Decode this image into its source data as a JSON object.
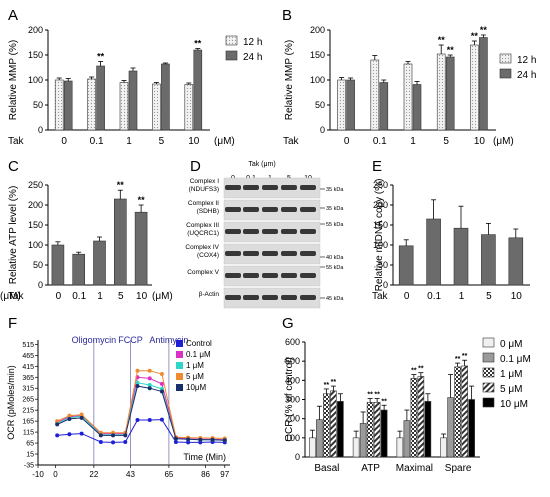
{
  "chart_data": [
    {
      "panel": "A",
      "type": "bar",
      "ylabel": "Relative MMP (%)",
      "xlabel_prefix": "Tak",
      "unit": "(μM)",
      "ylim": [
        0,
        200
      ],
      "yticks": [
        0,
        50,
        100,
        150,
        200
      ],
      "categories": [
        "0",
        "0.1",
        "1",
        "5",
        "10"
      ],
      "series": [
        {
          "name": "12 h",
          "values": [
            100,
            102,
            95,
            92,
            91
          ],
          "errors": [
            4,
            4,
            4,
            3,
            3
          ]
        },
        {
          "name": "24 h",
          "values": [
            98,
            128,
            118,
            132,
            160
          ],
          "errors": [
            5,
            9,
            6,
            2,
            3
          ]
        }
      ],
      "significance": [
        {
          "series": 1,
          "index": 1,
          "label": "**"
        },
        {
          "series": 1,
          "index": 4,
          "label": "**"
        }
      ]
    },
    {
      "panel": "B",
      "type": "bar",
      "ylabel": "Relative MMP (%)",
      "xlabel_prefix": "Tak",
      "unit": "(μM)",
      "ylim": [
        0,
        200
      ],
      "yticks": [
        0,
        50,
        100,
        150,
        200
      ],
      "categories": [
        "0",
        "0.1",
        "1",
        "5",
        "10"
      ],
      "series": [
        {
          "name": "12 h",
          "values": [
            100,
            140,
            132,
            152,
            170
          ],
          "errors": [
            5,
            9,
            5,
            18,
            8
          ]
        },
        {
          "name": "24 h",
          "values": [
            100,
            95,
            91,
            146,
            185
          ],
          "errors": [
            4,
            5,
            6,
            4,
            5
          ]
        }
      ],
      "significance": [
        {
          "series": 0,
          "index": 3,
          "label": "**"
        },
        {
          "series": 1,
          "index": 3,
          "label": "**"
        },
        {
          "series": 0,
          "index": 4,
          "label": "**"
        },
        {
          "series": 1,
          "index": 4,
          "label": "**"
        }
      ]
    },
    {
      "panel": "C",
      "type": "bar",
      "ylabel": "Relative ATP level (%)",
      "xlabel_prefix": "Tak",
      "unit": "(μM)",
      "ylim": [
        0,
        250
      ],
      "yticks": [
        0,
        50,
        100,
        150,
        200,
        250
      ],
      "categories": [
        "0",
        "0.1",
        "1",
        "5",
        "10"
      ],
      "values": [
        100,
        77,
        110,
        215,
        182
      ],
      "errors": [
        8,
        5,
        10,
        22,
        18
      ],
      "significance": [
        {
          "index": 3,
          "label": "**"
        },
        {
          "index": 4,
          "label": "**"
        }
      ]
    },
    {
      "panel": "D",
      "type": "western-blot",
      "header": "Tak (μm)",
      "lanes": [
        "0",
        "0.1",
        "1",
        "5",
        "10"
      ],
      "bands": [
        {
          "label": [
            "Complex I",
            "(NDUFS3)"
          ],
          "markers": [
            "35 kDa"
          ]
        },
        {
          "label": [
            "Complex II",
            "(SDHB)"
          ],
          "markers": [
            "35 kDa",
            "55 kDa"
          ]
        },
        {
          "label": [
            "Complex III",
            "(UQCRC1)"
          ],
          "markers": []
        },
        {
          "label": [
            "Complex IV",
            "(COX4)"
          ],
          "markers": [
            "40 kDa",
            "55 kDa"
          ]
        },
        {
          "label": [
            "Complex V"
          ],
          "markers": []
        },
        {
          "label": [
            "β-Actin"
          ],
          "markers": [
            "45 kDa"
          ]
        }
      ]
    },
    {
      "panel": "E",
      "type": "bar",
      "ylabel": "Relative mtDNA copy (%)",
      "xlabel_prefix": "Tak",
      "unit": "(μM)",
      "ylim": [
        0,
        250
      ],
      "yticks": [
        0,
        50,
        100,
        150,
        200,
        250
      ],
      "categories": [
        "0",
        "0.1",
        "1",
        "5",
        "10"
      ],
      "values": [
        98,
        165,
        142,
        126,
        118
      ],
      "errors": [
        15,
        48,
        55,
        28,
        22
      ]
    },
    {
      "panel": "F",
      "type": "line",
      "ylabel": "OCR (pMoles/min)",
      "xlabel": "Time (Min)",
      "xlim": [
        -10,
        100
      ],
      "ylim": [
        -35,
        535
      ],
      "xticks": [
        -10,
        0,
        22,
        43,
        65,
        86,
        97
      ],
      "yticks": [
        -35,
        15,
        65,
        115,
        165,
        215,
        265,
        315,
        365,
        415,
        465,
        515
      ],
      "annotations": [
        {
          "text": "Oligomycin",
          "x": 22
        },
        {
          "text": "FCCP",
          "x": 43
        },
        {
          "text": "Antimycin",
          "x": 65
        }
      ],
      "x": [
        1,
        8,
        15,
        26,
        33,
        40,
        47,
        54,
        61,
        69,
        76,
        83,
        90,
        97
      ],
      "series": [
        {
          "name": "Control",
          "color": "#1f1fd6",
          "values": [
            100,
            105,
            108,
            70,
            68,
            70,
            170,
            170,
            172,
            70,
            68,
            68,
            70,
            68
          ]
        },
        {
          "name": "0.1 μM",
          "color": "#d930c8",
          "values": [
            160,
            185,
            190,
            108,
            108,
            108,
            365,
            360,
            335,
            90,
            85,
            82,
            82,
            80
          ]
        },
        {
          "name": "1 μM",
          "color": "#2ed6c8",
          "values": [
            155,
            180,
            188,
            103,
            103,
            103,
            340,
            330,
            312,
            85,
            82,
            80,
            80,
            78
          ]
        },
        {
          "name": "5 μM",
          "color": "#f08a30",
          "values": [
            165,
            190,
            195,
            112,
            112,
            112,
            395,
            395,
            380,
            92,
            90,
            88,
            88,
            86
          ]
        },
        {
          "name": "10μM",
          "color": "#1a2f6a",
          "values": [
            150,
            175,
            180,
            100,
            100,
            100,
            325,
            315,
            300,
            85,
            82,
            80,
            80,
            78
          ]
        }
      ]
    },
    {
      "panel": "G",
      "type": "bar",
      "ylabel": "OCR (% of control)",
      "ylim": [
        0,
        600
      ],
      "yticks": [
        0,
        100,
        200,
        300,
        400,
        500,
        600
      ],
      "categories": [
        "Basal",
        "ATP",
        "Maximal",
        "Spare"
      ],
      "series": [
        {
          "name": "0 μM",
          "values": [
            100,
            100,
            100,
            100
          ],
          "errors": [
            40,
            35,
            35,
            20
          ]
        },
        {
          "name": "0.1 μM",
          "values": [
            195,
            175,
            190,
            310
          ],
          "errors": [
            70,
            60,
            55,
            120
          ]
        },
        {
          "name": "1 μM",
          "values": [
            330,
            285,
            410,
            470
          ],
          "errors": [
            25,
            20,
            20,
            20
          ]
        },
        {
          "name": "5 μM",
          "values": [
            345,
            285,
            420,
            475
          ],
          "errors": [
            25,
            20,
            20,
            30
          ]
        },
        {
          "name": "10 μM",
          "values": [
            290,
            245,
            290,
            300
          ],
          "errors": [
            40,
            25,
            40,
            70
          ]
        }
      ],
      "significance": [
        {
          "category": 0,
          "series": 2,
          "label": "**"
        },
        {
          "category": 0,
          "series": 3,
          "label": "**"
        },
        {
          "category": 1,
          "series": 2,
          "label": "**"
        },
        {
          "category": 1,
          "series": 3,
          "label": "**"
        },
        {
          "category": 1,
          "series": 4,
          "label": "**"
        },
        {
          "category": 2,
          "series": 2,
          "label": "**"
        },
        {
          "category": 2,
          "series": 3,
          "label": "**"
        },
        {
          "category": 3,
          "series": 2,
          "label": "**"
        },
        {
          "category": 3,
          "series": 3,
          "label": "**"
        }
      ]
    }
  ],
  "panels": {
    "a": "A",
    "b": "B",
    "c": "C",
    "d": "D",
    "e": "E",
    "f": "F",
    "g": "G"
  }
}
